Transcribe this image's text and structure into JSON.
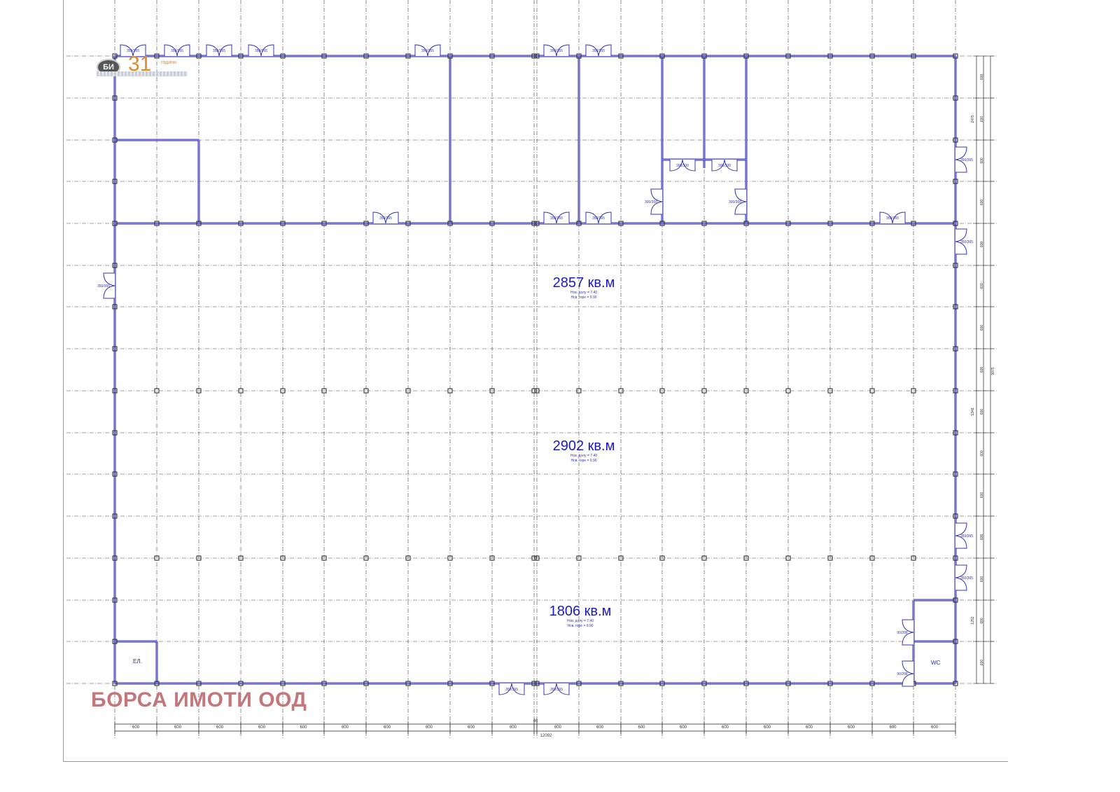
{
  "colors": {
    "wall": "#3434b4",
    "grid": "#444444",
    "text": "#1a1ac8",
    "watermark": "#c4777a",
    "logo": "#e08a2c"
  },
  "logo": {
    "mark": "БИ",
    "number": "31",
    "label": "години"
  },
  "watermark": "БОРСА ИМОТИ ООД",
  "areas": [
    {
      "value": "2857 кв.м",
      "h_low": "Нсв. долу = 7.40",
      "h_high": "Нсв. горе = 9.90"
    },
    {
      "value": "2902 кв.м",
      "h_low": "Нсв. долу = 7.40",
      "h_high": "Нсв. горе = 9.90"
    },
    {
      "value": "1806 кв.м",
      "h_low": "Нсв. долу = 7.40",
      "h_high": "Нсв. горе = 9.90"
    }
  ],
  "rooms": {
    "elevator": "ЕЛ.",
    "wc": "WC"
  },
  "dimensions": {
    "bay": "600",
    "offset": "46",
    "total_width": "12092",
    "right_side": [
      "2475",
      "9075",
      "5348",
      "1252"
    ],
    "door_large": "350/365",
    "door_small": "90/208",
    "door_inner": "300/300"
  }
}
